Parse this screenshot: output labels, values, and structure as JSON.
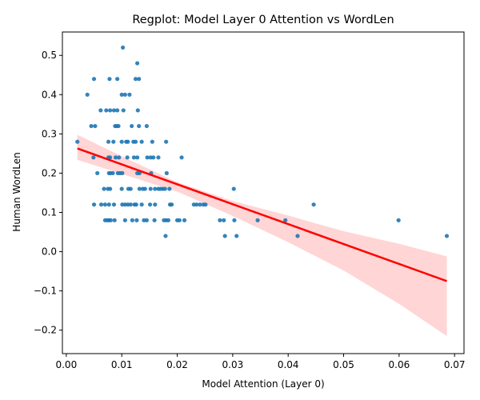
{
  "chart_data": {
    "type": "scatter",
    "title": "Regplot: Model Layer 0 Attention vs WordLen",
    "xlabel": "Model Attention (Layer 0)",
    "ylabel": "Human WordLen",
    "xlim": [
      -0.0007,
      0.0717
    ],
    "ylim": [
      -0.2597,
      0.5596
    ],
    "x_ticks": [
      0.0,
      0.01,
      0.02,
      0.03,
      0.04,
      0.05,
      0.06,
      0.07
    ],
    "x_tick_labels": [
      "0.00",
      "0.01",
      "0.02",
      "0.03",
      "0.04",
      "0.05",
      "0.06",
      "0.07"
    ],
    "y_ticks": [
      -0.2,
      -0.1,
      0.0,
      0.1,
      0.2,
      0.3,
      0.4,
      0.5
    ],
    "y_tick_labels": [
      "−0.2",
      "−0.1",
      "0.0",
      "0.1",
      "0.2",
      "0.3",
      "0.4",
      "0.5"
    ],
    "grid": false,
    "legend": "none",
    "colors": {
      "points": "#1f77b4",
      "regression_line": "#ff0000",
      "confidence_band": "#ffb3b3"
    },
    "regression_line": {
      "x": [
        0.002,
        0.0686
      ],
      "y": [
        0.263,
        -0.075
      ]
    },
    "confidence_band": {
      "x": [
        0.002,
        0.01,
        0.02,
        0.03,
        0.04,
        0.05,
        0.06,
        0.0686
      ],
      "lower": [
        0.234,
        0.198,
        0.153,
        0.091,
        0.024,
        -0.048,
        -0.133,
        -0.215
      ],
      "upper": [
        0.298,
        0.243,
        0.177,
        0.129,
        0.092,
        0.052,
        0.02,
        -0.012
      ]
    },
    "points": [
      [
        0.0102,
        0.52
      ],
      [
        0.0128,
        0.48
      ],
      [
        0.005,
        0.44
      ],
      [
        0.0078,
        0.44
      ],
      [
        0.0092,
        0.44
      ],
      [
        0.0125,
        0.44
      ],
      [
        0.0131,
        0.44
      ],
      [
        0.0038,
        0.4
      ],
      [
        0.01,
        0.4
      ],
      [
        0.0106,
        0.4
      ],
      [
        0.0114,
        0.4
      ],
      [
        0.0062,
        0.36
      ],
      [
        0.0072,
        0.36
      ],
      [
        0.0079,
        0.36
      ],
      [
        0.0086,
        0.36
      ],
      [
        0.0092,
        0.36
      ],
      [
        0.0103,
        0.36
      ],
      [
        0.0129,
        0.36
      ],
      [
        0.0045,
        0.32
      ],
      [
        0.0052,
        0.32
      ],
      [
        0.0088,
        0.32
      ],
      [
        0.0091,
        0.32
      ],
      [
        0.0094,
        0.32
      ],
      [
        0.0118,
        0.32
      ],
      [
        0.0131,
        0.32
      ],
      [
        0.0145,
        0.32
      ],
      [
        0.002,
        0.28
      ],
      [
        0.0076,
        0.28
      ],
      [
        0.0085,
        0.28
      ],
      [
        0.01,
        0.28
      ],
      [
        0.0108,
        0.28
      ],
      [
        0.0111,
        0.28
      ],
      [
        0.0121,
        0.28
      ],
      [
        0.0125,
        0.28
      ],
      [
        0.0136,
        0.28
      ],
      [
        0.0155,
        0.28
      ],
      [
        0.018,
        0.28
      ],
      [
        0.0049,
        0.24
      ],
      [
        0.0076,
        0.24
      ],
      [
        0.0079,
        0.24
      ],
      [
        0.0089,
        0.24
      ],
      [
        0.0095,
        0.24
      ],
      [
        0.011,
        0.24
      ],
      [
        0.0122,
        0.24
      ],
      [
        0.0128,
        0.24
      ],
      [
        0.0146,
        0.24
      ],
      [
        0.0152,
        0.24
      ],
      [
        0.0157,
        0.24
      ],
      [
        0.0166,
        0.24
      ],
      [
        0.0208,
        0.24
      ],
      [
        0.0056,
        0.2
      ],
      [
        0.0077,
        0.2
      ],
      [
        0.008,
        0.2
      ],
      [
        0.0084,
        0.2
      ],
      [
        0.0093,
        0.2
      ],
      [
        0.0097,
        0.2
      ],
      [
        0.0101,
        0.2
      ],
      [
        0.0128,
        0.2
      ],
      [
        0.0132,
        0.2
      ],
      [
        0.0153,
        0.2
      ],
      [
        0.0181,
        0.2
      ],
      [
        0.0068,
        0.16
      ],
      [
        0.0075,
        0.16
      ],
      [
        0.0079,
        0.16
      ],
      [
        0.01,
        0.16
      ],
      [
        0.0112,
        0.16
      ],
      [
        0.0116,
        0.16
      ],
      [
        0.0132,
        0.16
      ],
      [
        0.0138,
        0.16
      ],
      [
        0.0142,
        0.16
      ],
      [
        0.0152,
        0.16
      ],
      [
        0.016,
        0.16
      ],
      [
        0.0166,
        0.16
      ],
      [
        0.017,
        0.16
      ],
      [
        0.0174,
        0.16
      ],
      [
        0.0178,
        0.16
      ],
      [
        0.0186,
        0.16
      ],
      [
        0.0302,
        0.16
      ],
      [
        0.005,
        0.12
      ],
      [
        0.0063,
        0.12
      ],
      [
        0.007,
        0.12
      ],
      [
        0.0077,
        0.12
      ],
      [
        0.0086,
        0.12
      ],
      [
        0.0101,
        0.12
      ],
      [
        0.0106,
        0.12
      ],
      [
        0.0111,
        0.12
      ],
      [
        0.0116,
        0.12
      ],
      [
        0.0123,
        0.12
      ],
      [
        0.0126,
        0.12
      ],
      [
        0.0136,
        0.12
      ],
      [
        0.0151,
        0.12
      ],
      [
        0.016,
        0.12
      ],
      [
        0.0187,
        0.12
      ],
      [
        0.019,
        0.12
      ],
      [
        0.023,
        0.12
      ],
      [
        0.0235,
        0.12
      ],
      [
        0.0241,
        0.12
      ],
      [
        0.0247,
        0.12
      ],
      [
        0.0251,
        0.12
      ],
      [
        0.0446,
        0.12
      ],
      [
        0.007,
        0.08
      ],
      [
        0.0074,
        0.08
      ],
      [
        0.0077,
        0.08
      ],
      [
        0.008,
        0.08
      ],
      [
        0.0087,
        0.08
      ],
      [
        0.0106,
        0.08
      ],
      [
        0.0119,
        0.08
      ],
      [
        0.0127,
        0.08
      ],
      [
        0.014,
        0.08
      ],
      [
        0.0145,
        0.08
      ],
      [
        0.0159,
        0.08
      ],
      [
        0.0176,
        0.08
      ],
      [
        0.018,
        0.08
      ],
      [
        0.0184,
        0.08
      ],
      [
        0.02,
        0.08
      ],
      [
        0.0204,
        0.08
      ],
      [
        0.0213,
        0.08
      ],
      [
        0.0277,
        0.08
      ],
      [
        0.0284,
        0.08
      ],
      [
        0.0303,
        0.08
      ],
      [
        0.0345,
        0.08
      ],
      [
        0.0395,
        0.08
      ],
      [
        0.0599,
        0.08
      ],
      [
        0.0179,
        0.04
      ],
      [
        0.0286,
        0.04
      ],
      [
        0.0307,
        0.04
      ],
      [
        0.0417,
        0.04
      ],
      [
        0.0686,
        0.04
      ]
    ]
  }
}
